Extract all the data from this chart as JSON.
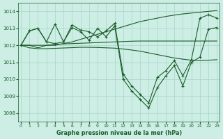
{
  "title": "Graphe pression niveau de la mer (hPa)",
  "bg_color": "#cceee4",
  "grid_color": "#aad4c8",
  "line_color": "#1a5c2a",
  "xlim": [
    -0.3,
    23.3
  ],
  "ylim": [
    1007.5,
    1014.5
  ],
  "yticks": [
    1008,
    1009,
    1010,
    1011,
    1012,
    1013,
    1014
  ],
  "xticks": [
    0,
    1,
    2,
    3,
    4,
    5,
    6,
    7,
    8,
    9,
    10,
    11,
    12,
    13,
    14,
    15,
    16,
    17,
    18,
    19,
    20,
    21,
    22,
    23
  ],
  "upper_line": [
    1012.0,
    1012.0,
    1012.0,
    1012.0,
    1012.0,
    1012.1,
    1012.2,
    1012.35,
    1012.5,
    1012.65,
    1012.8,
    1012.95,
    1013.1,
    1013.25,
    1013.4,
    1013.5,
    1013.6,
    1013.7,
    1013.78,
    1013.85,
    1013.9,
    1013.95,
    1014.0,
    1014.05
  ],
  "lower_line": [
    1012.0,
    1011.85,
    1011.8,
    1011.8,
    1011.82,
    1011.84,
    1011.86,
    1011.88,
    1011.88,
    1011.87,
    1011.85,
    1011.83,
    1011.78,
    1011.72,
    1011.65,
    1011.55,
    1011.45,
    1011.35,
    1011.25,
    1011.18,
    1011.12,
    1011.1,
    1011.12,
    1011.15
  ],
  "mid_line": [
    1012.0,
    1012.0,
    1011.85,
    1012.0,
    1012.05,
    1012.08,
    1012.1,
    1012.12,
    1012.14,
    1012.16,
    1012.18,
    1012.2,
    1012.22,
    1012.24,
    1012.25,
    1012.25,
    1012.25,
    1012.25,
    1012.25,
    1012.25,
    1012.25,
    1012.25,
    1012.25,
    1012.25
  ],
  "main_line": [
    1012.0,
    1012.85,
    1013.0,
    1012.2,
    1012.1,
    1012.2,
    1013.05,
    1012.8,
    1012.3,
    1013.0,
    1012.5,
    1013.15,
    1010.0,
    1009.3,
    1008.8,
    1008.3,
    1009.5,
    1010.2,
    1010.8,
    1009.6,
    1011.0,
    1011.3,
    1012.95,
    1013.05
  ],
  "series5": [
    1012.0,
    1012.85,
    1013.0,
    1012.2,
    1013.25,
    1012.2,
    1013.2,
    1012.9,
    1012.8,
    1012.5,
    1012.85,
    1013.3,
    1010.3,
    1009.6,
    1009.1,
    1008.6,
    1010.1,
    1010.5,
    1011.1,
    1010.2,
    1011.15,
    1013.6,
    1013.8,
    1013.6
  ]
}
